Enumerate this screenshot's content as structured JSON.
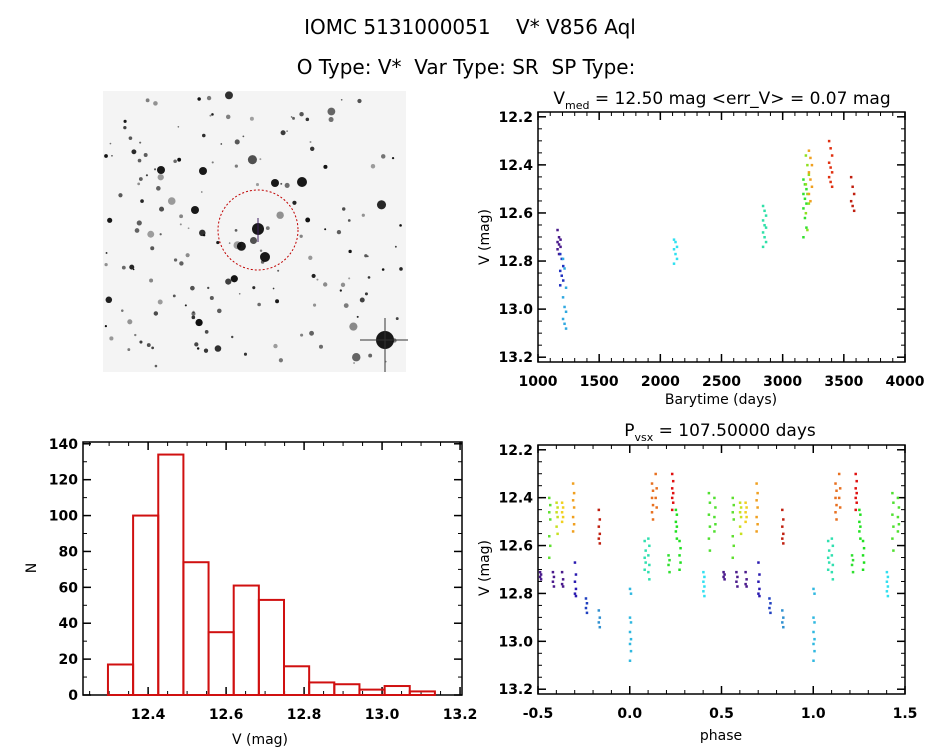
{
  "header": {
    "title": "IOMC 5131000051    V* V856 Aql",
    "subtitle": "O Type: V*  Var Type: SR  SP Type:"
  },
  "colors": {
    "axes": "#000000",
    "histogram": "#d01010",
    "finder_circle": "#c00000"
  },
  "chart_data": [
    {
      "panel": "finder",
      "type": "image",
      "description_visible": "DSS sky cutout, red dotted circle around target star"
    },
    {
      "panel": "lightcurve",
      "type": "scatter",
      "title_main": "V",
      "title_sub": "med",
      "title_rest": " = 12.50 mag <err_V> = 0.07 mag",
      "xlabel": "Barytime (days)",
      "ylabel": "V (mag)",
      "xlim": [
        1000,
        4000
      ],
      "ylim": [
        13.22,
        12.18
      ],
      "y_inverted": true,
      "xticks": [
        1000,
        1500,
        2000,
        2500,
        3000,
        3500,
        4000
      ],
      "xtick_labels": [
        "1000",
        "1500",
        "2000",
        "2500",
        "3000",
        "3500",
        "4000"
      ],
      "yticks": [
        12.2,
        12.4,
        12.6,
        12.8,
        13.0,
        13.2
      ],
      "ytick_labels": [
        "12.2",
        "12.4",
        "12.6",
        "12.8",
        "13.0",
        "13.2"
      ],
      "clusters": [
        {
          "t": 1170,
          "color": "#4a1a8c",
          "mags": [
            12.67,
            12.7,
            12.71,
            12.72,
            12.73,
            12.74,
            12.75,
            12.77
          ]
        },
        {
          "t": 1192,
          "color": "#2030c0",
          "mags": [
            12.77,
            12.79,
            12.82,
            12.84,
            12.86,
            12.88,
            12.9
          ]
        },
        {
          "t": 1215,
          "color": "#30a8e0",
          "mags": [
            12.79,
            12.83,
            12.91,
            12.95,
            12.99,
            13.01,
            13.04,
            13.06,
            13.08
          ]
        },
        {
          "t": 2122,
          "color": "#30e0f0",
          "mags": [
            12.71,
            12.72,
            12.74,
            12.75,
            12.77,
            12.79,
            12.81
          ]
        },
        {
          "t": 2850,
          "color": "#30e0a8",
          "mags": [
            12.57,
            12.59,
            12.61,
            12.63,
            12.65,
            12.66,
            12.68,
            12.7,
            12.72,
            12.74
          ]
        },
        {
          "t": 3180,
          "color": "#30e030",
          "mags": [
            12.46,
            12.48,
            12.5,
            12.52,
            12.54,
            12.56,
            12.58,
            12.62,
            12.66,
            12.7
          ]
        },
        {
          "t": 3200,
          "color": "#90e020",
          "mags": [
            12.36,
            12.4,
            12.44,
            12.48,
            12.52,
            12.56,
            12.6,
            12.67
          ]
        },
        {
          "t": 3225,
          "color": "#f0a020",
          "mags": [
            12.34,
            12.37,
            12.4,
            12.43,
            12.46,
            12.49,
            12.52,
            12.55
          ]
        },
        {
          "t": 3390,
          "color": "#e03010",
          "mags": [
            12.3,
            12.33,
            12.36,
            12.39,
            12.41,
            12.43,
            12.45,
            12.47,
            12.49
          ]
        },
        {
          "t": 3570,
          "color": "#c02010",
          "mags": [
            12.45,
            12.49,
            12.52,
            12.55,
            12.57,
            12.59
          ]
        }
      ]
    },
    {
      "panel": "histogram",
      "type": "bar",
      "xlabel": "V (mag)",
      "ylabel": "N",
      "xlim": [
        12.233,
        13.205
      ],
      "ylim": [
        0,
        141
      ],
      "xticks": [
        12.4,
        12.6,
        12.8,
        13.0,
        13.2
      ],
      "xtick_labels": [
        "12.4",
        "12.6",
        "12.8",
        "13.0",
        "13.2"
      ],
      "yticks": [
        0,
        20,
        40,
        60,
        80,
        100,
        120,
        140
      ],
      "ytick_labels": [
        "0",
        "20",
        "40",
        "60",
        "80",
        "100",
        "120",
        "140"
      ],
      "bin_start": 12.297,
      "bin_width": 0.0645,
      "values": [
        17,
        100,
        134,
        74,
        35,
        61,
        53,
        16,
        7,
        6,
        3,
        5,
        2
      ]
    },
    {
      "panel": "phased",
      "type": "scatter",
      "title_main": "P",
      "title_sub": "vsx",
      "title_rest": " = 107.50000 days",
      "xlabel": "phase",
      "ylabel": "V (mag)",
      "period_days": 107.5,
      "xlim": [
        -0.5,
        1.5
      ],
      "ylim": [
        13.22,
        12.18
      ],
      "y_inverted": true,
      "xticks": [
        -0.5,
        0.0,
        0.5,
        1.0,
        1.5
      ],
      "xtick_labels": [
        "-0.5",
        "0.0",
        "0.5",
        "1.0",
        "1.5"
      ],
      "yticks": [
        12.2,
        12.4,
        12.6,
        12.8,
        13.0,
        13.2
      ],
      "ytick_labels": [
        "12.2",
        "12.4",
        "12.6",
        "12.8",
        "13.0",
        "13.2"
      ],
      "repeat_cycles": [
        0,
        1
      ],
      "clusters": [
        {
          "phase": -0.49,
          "color": "#4a1a8c",
          "mags": [
            12.71,
            12.72,
            12.73,
            12.74
          ]
        },
        {
          "phase": -0.44,
          "color": "#60e030",
          "mags": [
            12.4,
            12.43,
            12.46,
            12.49,
            12.56,
            12.6,
            12.65
          ]
        },
        {
          "phase": -0.42,
          "color": "#4a1a8c",
          "mags": [
            12.71,
            12.73,
            12.75,
            12.77
          ]
        },
        {
          "phase": -0.4,
          "color": "#c8e020",
          "mags": [
            12.42,
            12.44,
            12.46,
            12.48,
            12.52,
            12.55
          ]
        },
        {
          "phase": -0.37,
          "color": "#f0d020",
          "mags": [
            12.42,
            12.44,
            12.46,
            12.48,
            12.5
          ]
        },
        {
          "phase": -0.37,
          "color": "#4a1a8c",
          "mags": [
            12.71,
            12.74,
            12.76,
            12.77
          ]
        },
        {
          "phase": -0.31,
          "color": "#f0a020",
          "mags": [
            12.34,
            12.38,
            12.41,
            12.44,
            12.48,
            12.51,
            12.54
          ]
        },
        {
          "phase": -0.3,
          "color": "#2a1ab0",
          "mags": [
            12.67,
            12.72,
            12.75,
            12.78,
            12.8,
            12.81
          ]
        },
        {
          "phase": -0.24,
          "color": "#2040c0",
          "mags": [
            12.82,
            12.84,
            12.86,
            12.88
          ]
        },
        {
          "phase": -0.17,
          "color": "#c02010",
          "mags": [
            12.45,
            12.49,
            12.52,
            12.55,
            12.57,
            12.59
          ]
        },
        {
          "phase": -0.17,
          "color": "#3090d0",
          "mags": [
            12.87,
            12.9,
            12.92,
            12.94
          ]
        },
        {
          "phase": 0.0,
          "color": "#30b8e0",
          "mags": [
            12.78,
            12.8,
            12.9,
            12.92,
            12.96,
            12.99,
            13.01,
            13.04,
            13.08
          ]
        },
        {
          "phase": 0.08,
          "color": "#30e0b0",
          "mags": [
            12.58,
            12.62,
            12.65,
            12.67,
            12.7
          ]
        },
        {
          "phase": 0.1,
          "color": "#30e0b0",
          "mags": [
            12.57,
            12.6,
            12.64,
            12.68,
            12.71,
            12.74
          ]
        },
        {
          "phase": 0.12,
          "color": "#e87020",
          "mags": [
            12.34,
            12.37,
            12.4,
            12.43,
            12.46,
            12.49
          ]
        },
        {
          "phase": 0.14,
          "color": "#e87020",
          "mags": [
            12.3,
            12.36,
            12.4,
            12.44
          ]
        },
        {
          "phase": 0.21,
          "color": "#30e030",
          "mags": [
            12.64,
            12.66,
            12.68,
            12.71
          ]
        },
        {
          "phase": 0.23,
          "color": "#e01010",
          "mags": [
            12.3,
            12.33,
            12.36,
            12.38,
            12.4,
            12.42,
            12.45
          ]
        },
        {
          "phase": 0.25,
          "color": "#20e020",
          "mags": [
            12.45,
            12.47,
            12.5,
            12.52,
            12.54,
            12.57
          ]
        },
        {
          "phase": 0.27,
          "color": "#20e020",
          "mags": [
            12.58,
            12.61,
            12.64,
            12.67,
            12.7
          ]
        },
        {
          "phase": 0.4,
          "color": "#30e0f0",
          "mags": [
            12.71,
            12.73,
            12.75,
            12.77,
            12.79,
            12.81
          ]
        },
        {
          "phase": 0.43,
          "color": "#50e030",
          "mags": [
            12.38,
            12.42,
            12.47,
            12.52,
            12.57,
            12.62
          ]
        },
        {
          "phase": 0.46,
          "color": "#50e030",
          "mags": [
            12.4,
            12.44,
            12.48,
            12.51,
            12.54
          ]
        }
      ]
    }
  ]
}
